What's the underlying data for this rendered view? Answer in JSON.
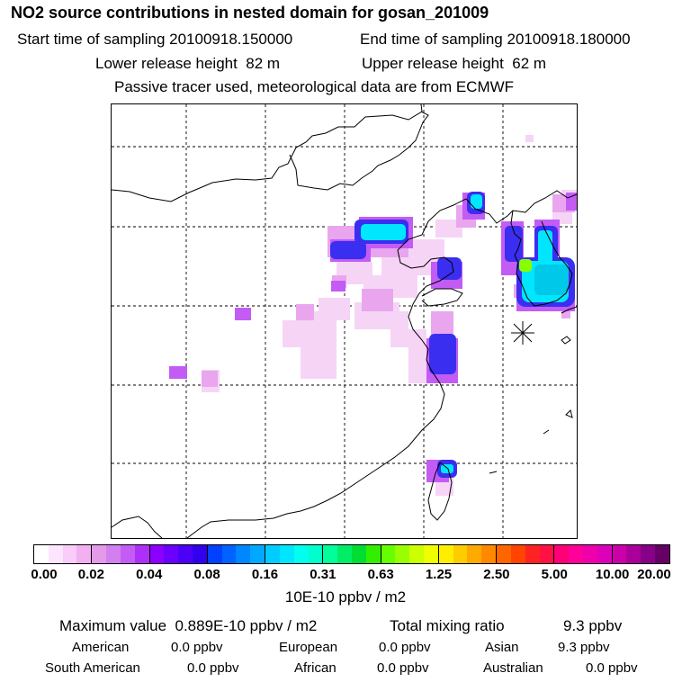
{
  "title": "NO2 source contributions in nested domain for gosan_201009",
  "header": {
    "start_label": "Start time of sampling",
    "start_value": "20100918.150000",
    "end_label": "End time of sampling",
    "end_value": "20100918.180000",
    "lower_label": "Lower release height",
    "lower_value": "82 m",
    "upper_label": "Upper release height",
    "upper_value": "62 m",
    "note": "Passive tracer used, meteorological data are from ECMWF"
  },
  "colorbar": {
    "ticks": [
      "0.00",
      "0.02",
      "0.04",
      "0.08",
      "0.16",
      "0.31",
      "0.63",
      "1.25",
      "2.50",
      "5.00",
      "10.00",
      "20.00"
    ],
    "segments": [
      [
        "#ffffff",
        "#fde6fd",
        "#f9ccf9",
        "#f2b0f2"
      ],
      [
        "#e29ae9",
        "#d47fef",
        "#c35cf4",
        "#ad30f8"
      ],
      [
        "#8c00ff",
        "#6b00ff",
        "#4d00f8",
        "#3300ee"
      ],
      [
        "#0040ff",
        "#0063ff",
        "#0086ff",
        "#00a9ff"
      ],
      [
        "#00ccff",
        "#00e6ff",
        "#00ffee",
        "#00ffcc"
      ],
      [
        "#00ff99",
        "#00ee66",
        "#00dd33",
        "#33ee00"
      ],
      [
        "#66ff00",
        "#99ff00",
        "#ccff00",
        "#eeff00"
      ],
      [
        "#ffee00",
        "#ffcc00",
        "#ffaa00",
        "#ff8800"
      ],
      [
        "#ff6600",
        "#ff4400",
        "#ff2222",
        "#ff1144"
      ],
      [
        "#ff0077",
        "#ff0099",
        "#ee00aa",
        "#dd00bb"
      ],
      [
        "#cc00aa",
        "#aa0099",
        "#880088",
        "#660066"
      ]
    ],
    "unit": "10E-10 ppbv / m2"
  },
  "stats": {
    "max_label": "Maximum value",
    "max_value": "0.889E-10 ppbv / m2",
    "total_label": "Total mixing ratio",
    "total_value": "9.3 ppbv",
    "regions": [
      {
        "name": "American",
        "value": "0.0 ppbv"
      },
      {
        "name": "European",
        "value": "0.0 ppbv"
      },
      {
        "name": "Asian",
        "value": "9.3 ppbv"
      },
      {
        "name": "South American",
        "value": "0.0 ppbv"
      },
      {
        "name": "African",
        "value": "0.0 ppbv"
      },
      {
        "name": "Australian",
        "value": "0.0 ppbv"
      }
    ]
  },
  "map": {
    "receptor_marker": "gosan",
    "colors": {
      "faint": "#f6d4f6",
      "light": "#e9a6ef",
      "violet": "#9b30ff",
      "blue": "#2a2ae8",
      "cyan": "#00e6ff",
      "teal": "#00c8e8",
      "green": "#88ff00"
    }
  }
}
